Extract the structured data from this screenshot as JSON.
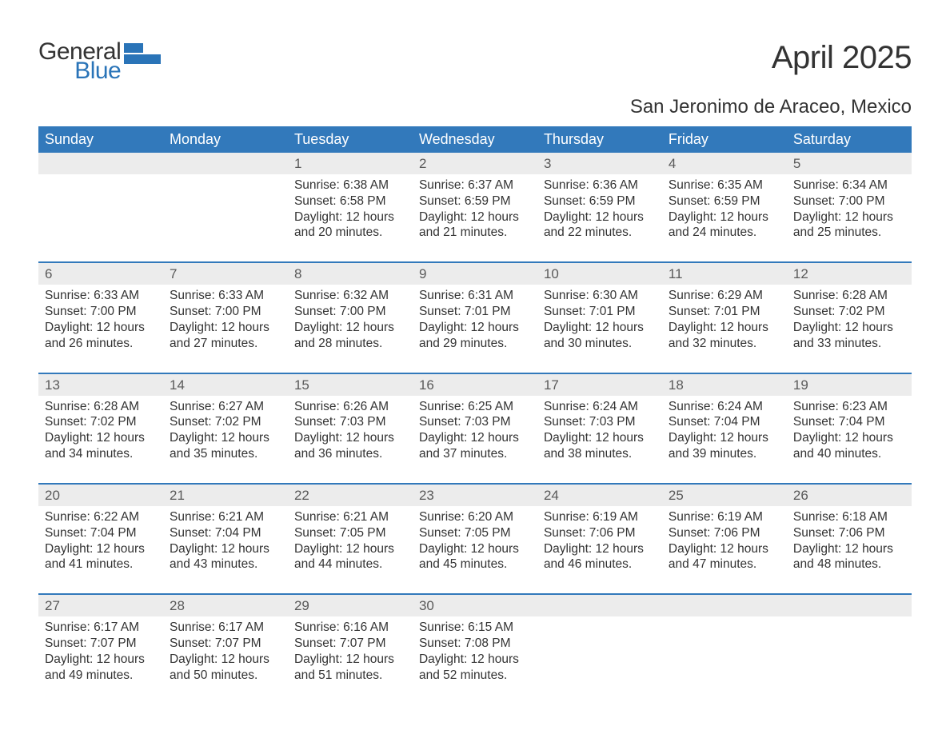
{
  "brand": {
    "word1": "General",
    "word2": "Blue",
    "color_general": "#333333",
    "color_blue": "#2a74b8",
    "icon_color": "#2a74b8"
  },
  "title": "April 2025",
  "location": "San Jeronimo de Araceo, Mexico",
  "colors": {
    "header_bg": "#3279bb",
    "header_text": "#ffffff",
    "daynum_bg": "#ececec",
    "daynum_text": "#5a5a5a",
    "body_text": "#333333",
    "row_border": "#3279bb",
    "page_bg": "#ffffff"
  },
  "typography": {
    "title_fontsize": 40,
    "location_fontsize": 24,
    "dow_fontsize": 18,
    "daynum_fontsize": 17,
    "detail_fontsize": 15.5
  },
  "days_of_week": [
    "Sunday",
    "Monday",
    "Tuesday",
    "Wednesday",
    "Thursday",
    "Friday",
    "Saturday"
  ],
  "weeks": [
    [
      {
        "n": "",
        "sunrise": "",
        "sunset": "",
        "daylight": ""
      },
      {
        "n": "",
        "sunrise": "",
        "sunset": "",
        "daylight": ""
      },
      {
        "n": "1",
        "sunrise": "Sunrise: 6:38 AM",
        "sunset": "Sunset: 6:58 PM",
        "daylight": "Daylight: 12 hours and 20 minutes."
      },
      {
        "n": "2",
        "sunrise": "Sunrise: 6:37 AM",
        "sunset": "Sunset: 6:59 PM",
        "daylight": "Daylight: 12 hours and 21 minutes."
      },
      {
        "n": "3",
        "sunrise": "Sunrise: 6:36 AM",
        "sunset": "Sunset: 6:59 PM",
        "daylight": "Daylight: 12 hours and 22 minutes."
      },
      {
        "n": "4",
        "sunrise": "Sunrise: 6:35 AM",
        "sunset": "Sunset: 6:59 PM",
        "daylight": "Daylight: 12 hours and 24 minutes."
      },
      {
        "n": "5",
        "sunrise": "Sunrise: 6:34 AM",
        "sunset": "Sunset: 7:00 PM",
        "daylight": "Daylight: 12 hours and 25 minutes."
      }
    ],
    [
      {
        "n": "6",
        "sunrise": "Sunrise: 6:33 AM",
        "sunset": "Sunset: 7:00 PM",
        "daylight": "Daylight: 12 hours and 26 minutes."
      },
      {
        "n": "7",
        "sunrise": "Sunrise: 6:33 AM",
        "sunset": "Sunset: 7:00 PM",
        "daylight": "Daylight: 12 hours and 27 minutes."
      },
      {
        "n": "8",
        "sunrise": "Sunrise: 6:32 AM",
        "sunset": "Sunset: 7:00 PM",
        "daylight": "Daylight: 12 hours and 28 minutes."
      },
      {
        "n": "9",
        "sunrise": "Sunrise: 6:31 AM",
        "sunset": "Sunset: 7:01 PM",
        "daylight": "Daylight: 12 hours and 29 minutes."
      },
      {
        "n": "10",
        "sunrise": "Sunrise: 6:30 AM",
        "sunset": "Sunset: 7:01 PM",
        "daylight": "Daylight: 12 hours and 30 minutes."
      },
      {
        "n": "11",
        "sunrise": "Sunrise: 6:29 AM",
        "sunset": "Sunset: 7:01 PM",
        "daylight": "Daylight: 12 hours and 32 minutes."
      },
      {
        "n": "12",
        "sunrise": "Sunrise: 6:28 AM",
        "sunset": "Sunset: 7:02 PM",
        "daylight": "Daylight: 12 hours and 33 minutes."
      }
    ],
    [
      {
        "n": "13",
        "sunrise": "Sunrise: 6:28 AM",
        "sunset": "Sunset: 7:02 PM",
        "daylight": "Daylight: 12 hours and 34 minutes."
      },
      {
        "n": "14",
        "sunrise": "Sunrise: 6:27 AM",
        "sunset": "Sunset: 7:02 PM",
        "daylight": "Daylight: 12 hours and 35 minutes."
      },
      {
        "n": "15",
        "sunrise": "Sunrise: 6:26 AM",
        "sunset": "Sunset: 7:03 PM",
        "daylight": "Daylight: 12 hours and 36 minutes."
      },
      {
        "n": "16",
        "sunrise": "Sunrise: 6:25 AM",
        "sunset": "Sunset: 7:03 PM",
        "daylight": "Daylight: 12 hours and 37 minutes."
      },
      {
        "n": "17",
        "sunrise": "Sunrise: 6:24 AM",
        "sunset": "Sunset: 7:03 PM",
        "daylight": "Daylight: 12 hours and 38 minutes."
      },
      {
        "n": "18",
        "sunrise": "Sunrise: 6:24 AM",
        "sunset": "Sunset: 7:04 PM",
        "daylight": "Daylight: 12 hours and 39 minutes."
      },
      {
        "n": "19",
        "sunrise": "Sunrise: 6:23 AM",
        "sunset": "Sunset: 7:04 PM",
        "daylight": "Daylight: 12 hours and 40 minutes."
      }
    ],
    [
      {
        "n": "20",
        "sunrise": "Sunrise: 6:22 AM",
        "sunset": "Sunset: 7:04 PM",
        "daylight": "Daylight: 12 hours and 41 minutes."
      },
      {
        "n": "21",
        "sunrise": "Sunrise: 6:21 AM",
        "sunset": "Sunset: 7:04 PM",
        "daylight": "Daylight: 12 hours and 43 minutes."
      },
      {
        "n": "22",
        "sunrise": "Sunrise: 6:21 AM",
        "sunset": "Sunset: 7:05 PM",
        "daylight": "Daylight: 12 hours and 44 minutes."
      },
      {
        "n": "23",
        "sunrise": "Sunrise: 6:20 AM",
        "sunset": "Sunset: 7:05 PM",
        "daylight": "Daylight: 12 hours and 45 minutes."
      },
      {
        "n": "24",
        "sunrise": "Sunrise: 6:19 AM",
        "sunset": "Sunset: 7:06 PM",
        "daylight": "Daylight: 12 hours and 46 minutes."
      },
      {
        "n": "25",
        "sunrise": "Sunrise: 6:19 AM",
        "sunset": "Sunset: 7:06 PM",
        "daylight": "Daylight: 12 hours and 47 minutes."
      },
      {
        "n": "26",
        "sunrise": "Sunrise: 6:18 AM",
        "sunset": "Sunset: 7:06 PM",
        "daylight": "Daylight: 12 hours and 48 minutes."
      }
    ],
    [
      {
        "n": "27",
        "sunrise": "Sunrise: 6:17 AM",
        "sunset": "Sunset: 7:07 PM",
        "daylight": "Daylight: 12 hours and 49 minutes."
      },
      {
        "n": "28",
        "sunrise": "Sunrise: 6:17 AM",
        "sunset": "Sunset: 7:07 PM",
        "daylight": "Daylight: 12 hours and 50 minutes."
      },
      {
        "n": "29",
        "sunrise": "Sunrise: 6:16 AM",
        "sunset": "Sunset: 7:07 PM",
        "daylight": "Daylight: 12 hours and 51 minutes."
      },
      {
        "n": "30",
        "sunrise": "Sunrise: 6:15 AM",
        "sunset": "Sunset: 7:08 PM",
        "daylight": "Daylight: 12 hours and 52 minutes."
      },
      {
        "n": "",
        "sunrise": "",
        "sunset": "",
        "daylight": ""
      },
      {
        "n": "",
        "sunrise": "",
        "sunset": "",
        "daylight": ""
      },
      {
        "n": "",
        "sunrise": "",
        "sunset": "",
        "daylight": ""
      }
    ]
  ]
}
